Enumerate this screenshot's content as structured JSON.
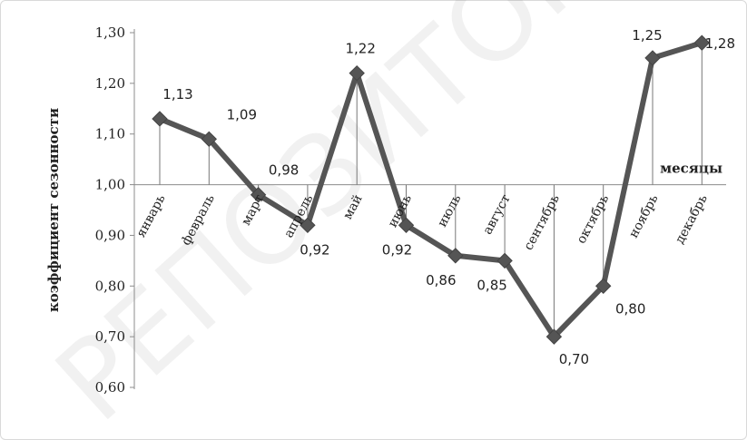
{
  "chart_data": {
    "type": "line",
    "ylabel": "коэффициент сезонности",
    "xlabel": "месяцы",
    "ylim": [
      0.6,
      1.3
    ],
    "yticks": [
      "0,60",
      "0,70",
      "0,80",
      "0,90",
      "1,00",
      "1,10",
      "1,20",
      "1,30"
    ],
    "ytick_values": [
      0.6,
      0.7,
      0.8,
      0.9,
      1.0,
      1.1,
      1.2,
      1.3
    ],
    "baseline": 1.0,
    "grid": false,
    "categories": [
      "январь",
      "февраль",
      "март",
      "апрель",
      "май",
      "июнь",
      "июль",
      "август",
      "сентябрь",
      "октябрь",
      "ноябрь",
      "декабрь"
    ],
    "values": [
      1.13,
      1.09,
      0.98,
      0.92,
      1.22,
      0.92,
      0.86,
      0.85,
      0.7,
      0.8,
      1.25,
      1.28
    ],
    "value_labels": [
      "1,13",
      "1,09",
      "0,98",
      "0,92",
      "1,22",
      "0,92",
      "0,86",
      "0,85",
      "0,70",
      "0,80",
      "1,25",
      "1,28"
    ],
    "series_color": "#555555",
    "marker": "diamond"
  },
  "watermark": "РЕПОЗИТОРИЙ ГГУ"
}
